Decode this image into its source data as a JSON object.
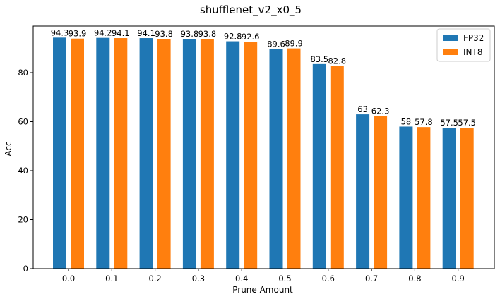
{
  "chart_data": {
    "type": "bar",
    "title": "shufflenet_v2_x0_5",
    "xlabel": "Prune Amount",
    "ylabel": "Acc",
    "categories": [
      "0.0",
      "0.1",
      "0.2",
      "0.3",
      "0.4",
      "0.5",
      "0.6",
      "0.7",
      "0.8",
      "0.9"
    ],
    "series": [
      {
        "name": "FP32",
        "color": "#1f77b4",
        "values": [
          94.3,
          94.2,
          94.1,
          93.8,
          92.8,
          89.6,
          83.5,
          63,
          58,
          57.5
        ],
        "labels": [
          "94.3",
          "94.2",
          "94.1",
          "93.8",
          "92.8",
          "89.6",
          "83.5",
          "63",
          "58",
          "57.5"
        ]
      },
      {
        "name": "INT8",
        "color": "#ff7f0e",
        "values": [
          93.9,
          94.1,
          93.8,
          93.8,
          92.6,
          89.9,
          82.8,
          62.3,
          57.8,
          57.5
        ],
        "labels": [
          "93.9",
          "94.1",
          "93.8",
          "93.8",
          "92.6",
          "89.9",
          "82.8",
          "62.3",
          "57.8",
          "57.5"
        ]
      }
    ],
    "ylim": [
      0,
      99
    ],
    "yticks": [
      0,
      20,
      40,
      60,
      80
    ],
    "grid": false,
    "legend_position": "top-right"
  }
}
